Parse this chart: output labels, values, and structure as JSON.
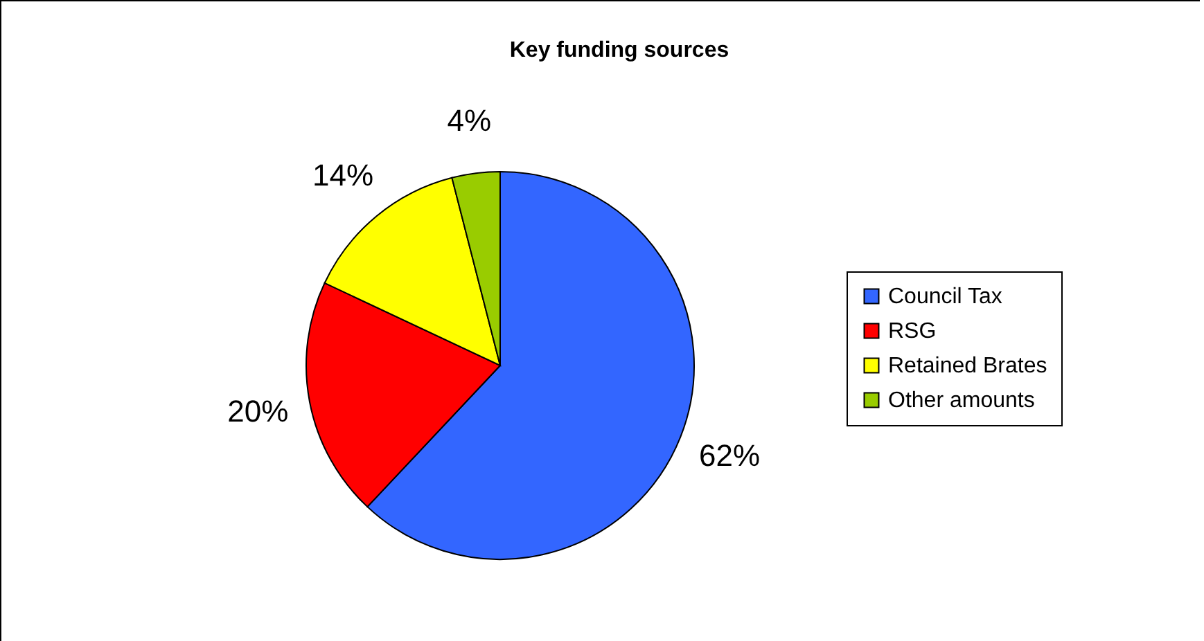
{
  "chart_data": {
    "type": "pie",
    "title": "Key funding sources",
    "categories": [
      "Council Tax",
      "RSG",
      "Retained Brates",
      "Other amounts"
    ],
    "values": [
      62,
      20,
      14,
      4
    ],
    "value_labels": [
      "62%",
      "20%",
      "14%",
      "4%"
    ],
    "colors": [
      "#3366ff",
      "#ff0000",
      "#ffff00",
      "#99cc00"
    ],
    "legend": "right"
  }
}
